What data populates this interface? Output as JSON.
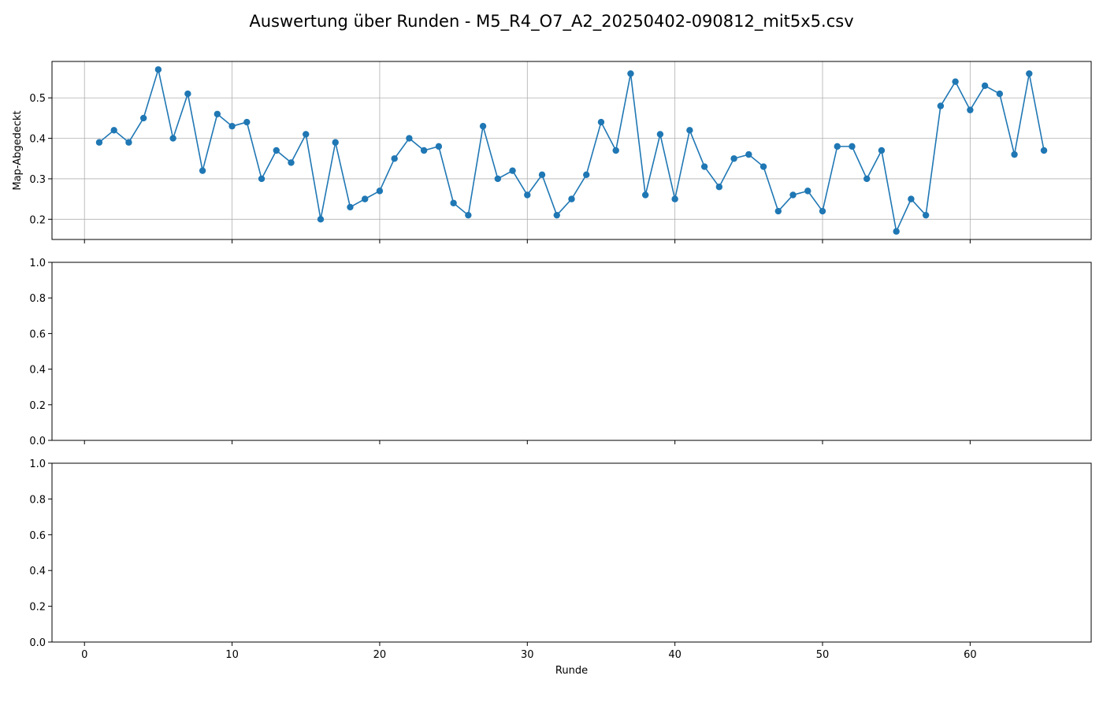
{
  "figure": {
    "title": "Auswertung über Runden - M5_R4_O7_A2_20250402-090812_mit5x5.csv"
  },
  "chart_data": [
    {
      "type": "line",
      "title": "",
      "xlabel": "",
      "ylabel": "Map-Abgedeckt",
      "xlim": [
        -2.2,
        68.2
      ],
      "ylim": [
        0.15,
        0.59
      ],
      "xticks": [
        0,
        10,
        20,
        30,
        40,
        50,
        60
      ],
      "xtick_labels_shown": false,
      "yticks": [
        0.2,
        0.3,
        0.4,
        0.5
      ],
      "ytick_labels": [
        "0.2",
        "0.3",
        "0.4",
        "0.5"
      ],
      "grid": true,
      "marker": "circle",
      "color": "#1f77b4",
      "series": [
        {
          "x": [
            1,
            2,
            3,
            4,
            5,
            6,
            7,
            8,
            9,
            10,
            11,
            12,
            13,
            14,
            15,
            16,
            17,
            18,
            19,
            20,
            21,
            22,
            23,
            24,
            25,
            26,
            27,
            28,
            29,
            30,
            31,
            32,
            33,
            34,
            35,
            36,
            37,
            38,
            39,
            40,
            41,
            42,
            43,
            44,
            45,
            46,
            47,
            48,
            49,
            50,
            51,
            52,
            53,
            54,
            55,
            56,
            57,
            58,
            59,
            60,
            61,
            62,
            63,
            64,
            65
          ],
          "values": [
            0.39,
            0.42,
            0.39,
            0.45,
            0.57,
            0.4,
            0.51,
            0.32,
            0.46,
            0.43,
            0.44,
            0.3,
            0.37,
            0.34,
            0.41,
            0.2,
            0.39,
            0.23,
            0.25,
            0.27,
            0.35,
            0.4,
            0.37,
            0.38,
            0.24,
            0.21,
            0.43,
            0.3,
            0.32,
            0.26,
            0.31,
            0.21,
            0.25,
            0.31,
            0.44,
            0.37,
            0.56,
            0.26,
            0.41,
            0.25,
            0.42,
            0.33,
            0.28,
            0.35,
            0.36,
            0.33,
            0.22,
            0.26,
            0.27,
            0.22,
            0.38,
            0.38,
            0.3,
            0.37,
            0.17,
            0.25,
            0.21,
            0.48,
            0.54,
            0.47,
            0.53,
            0.51,
            0.36,
            0.56,
            0.37
          ]
        }
      ]
    },
    {
      "type": "line",
      "title": "",
      "xlabel": "",
      "ylabel": "",
      "xlim": [
        -2.2,
        68.2
      ],
      "ylim": [
        0.0,
        1.0
      ],
      "xticks": [
        0,
        10,
        20,
        30,
        40,
        50,
        60
      ],
      "xtick_labels_shown": false,
      "yticks": [
        0.0,
        0.2,
        0.4,
        0.6,
        0.8,
        1.0
      ],
      "ytick_labels": [
        "0.0",
        "0.2",
        "0.4",
        "0.6",
        "0.8",
        "1.0"
      ],
      "grid": false,
      "series": []
    },
    {
      "type": "line",
      "title": "",
      "xlabel": "Runde",
      "ylabel": "",
      "xlim": [
        -2.2,
        68.2
      ],
      "ylim": [
        0.0,
        1.0
      ],
      "xticks": [
        0,
        10,
        20,
        30,
        40,
        50,
        60
      ],
      "xtick_labels": [
        "0",
        "10",
        "20",
        "30",
        "40",
        "50",
        "60"
      ],
      "xtick_labels_shown": true,
      "yticks": [
        0.0,
        0.2,
        0.4,
        0.6,
        0.8,
        1.0
      ],
      "ytick_labels": [
        "0.0",
        "0.2",
        "0.4",
        "0.6",
        "0.8",
        "1.0"
      ],
      "grid": false,
      "series": []
    }
  ]
}
